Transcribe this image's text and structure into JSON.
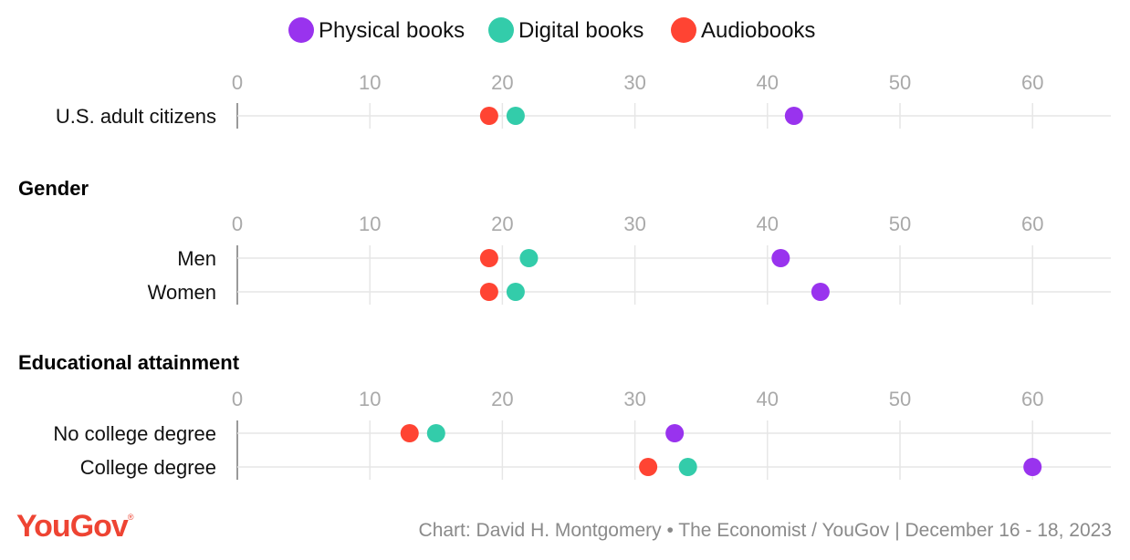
{
  "legend": [
    {
      "label": "Physical books",
      "color": "#9933ee"
    },
    {
      "label": "Digital books",
      "color": "#33ccaa"
    },
    {
      "label": "Audiobooks",
      "color": "#ff4433"
    }
  ],
  "chart_data": {
    "type": "scatter",
    "subtype": "dot-plot",
    "x_axis": {
      "ticks": [
        "0",
        "10",
        "20",
        "30",
        "40",
        "50",
        "60"
      ],
      "range": [
        0,
        65
      ]
    },
    "series": [
      "Physical books",
      "Digital books",
      "Audiobooks"
    ],
    "groups": [
      {
        "title": "",
        "rows": [
          {
            "label": "U.S. adult citizens",
            "values": {
              "Physical books": 42,
              "Digital books": 21,
              "Audiobooks": 19
            }
          }
        ]
      },
      {
        "title": "Gender",
        "rows": [
          {
            "label": "Men",
            "values": {
              "Physical books": 41,
              "Digital books": 22,
              "Audiobooks": 19
            }
          },
          {
            "label": "Women",
            "values": {
              "Physical books": 44,
              "Digital books": 21,
              "Audiobooks": 19
            }
          }
        ]
      },
      {
        "title": "Educational attainment",
        "rows": [
          {
            "label": "No college degree",
            "values": {
              "Physical books": 33,
              "Digital books": 15,
              "Audiobooks": 13
            }
          },
          {
            "label": "College degree",
            "values": {
              "Physical books": 60,
              "Digital books": 34,
              "Audiobooks": 31
            }
          }
        ]
      }
    ]
  },
  "footer": {
    "brand": "YouGov",
    "brand_mark": "®",
    "source": "Chart: David H. Montgomery • The Economist / YouGov | December 16 - 18, 2023"
  }
}
